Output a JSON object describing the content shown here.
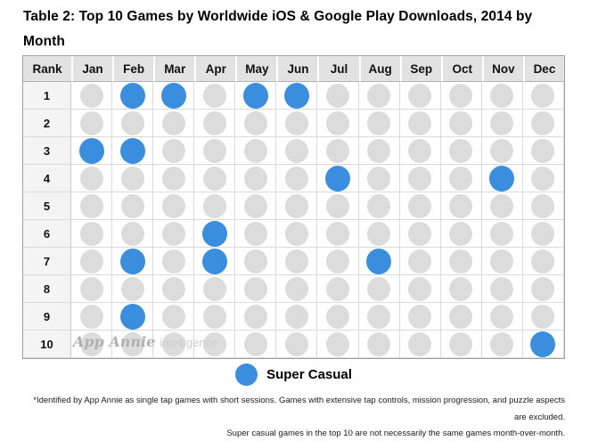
{
  "title": "Table 2: Top 10 Games by Worldwide iOS & Google Play Downloads, 2014 by Month",
  "legend": {
    "label": "Super Casual"
  },
  "watermark": {
    "brand": "App Annie",
    "suffix": "intelligence"
  },
  "footnotes": {
    "line1": "*Identified by App Annie as single tap games with short sessions. Games with extensive tap controls, mission progression, and puzzle aspects are excluded.",
    "line2": "Super casual games in the top 10 are not necessarily the same games month-over-month."
  },
  "colors": {
    "super_casual_blue": "#3a8edd",
    "other_game_gray": "#dcdcdc",
    "header_bg": "#e2e2e2",
    "rank_col_bg": "#f4f4f4"
  },
  "chart_data": {
    "type": "heatmap",
    "title": "Top 10 Games by Worldwide iOS & Google Play Downloads, 2014 by Month",
    "corner_header": "Rank",
    "x_categories": [
      "Jan",
      "Feb",
      "Mar",
      "Apr",
      "May",
      "Jun",
      "Jul",
      "Aug",
      "Sep",
      "Oct",
      "Nov",
      "Dec"
    ],
    "y_categories": [
      "1",
      "2",
      "3",
      "4",
      "5",
      "6",
      "7",
      "8",
      "9",
      "10"
    ],
    "legend": [
      {
        "label": "Super Casual",
        "color": "#3a8edd"
      }
    ],
    "cell_meaning": {
      "1": "Super Casual game at this rank",
      "0": "non-super-casual game at this rank"
    },
    "matrix": [
      [
        0,
        1,
        1,
        0,
        1,
        1,
        0,
        0,
        0,
        0,
        0,
        0
      ],
      [
        0,
        0,
        0,
        0,
        0,
        0,
        0,
        0,
        0,
        0,
        0,
        0
      ],
      [
        1,
        1,
        0,
        0,
        0,
        0,
        0,
        0,
        0,
        0,
        0,
        0
      ],
      [
        0,
        0,
        0,
        0,
        0,
        0,
        1,
        0,
        0,
        0,
        1,
        0
      ],
      [
        0,
        0,
        0,
        0,
        0,
        0,
        0,
        0,
        0,
        0,
        0,
        0
      ],
      [
        0,
        0,
        0,
        1,
        0,
        0,
        0,
        0,
        0,
        0,
        0,
        0
      ],
      [
        0,
        1,
        0,
        1,
        0,
        0,
        0,
        1,
        0,
        0,
        0,
        0
      ],
      [
        0,
        0,
        0,
        0,
        0,
        0,
        0,
        0,
        0,
        0,
        0,
        0
      ],
      [
        0,
        1,
        0,
        0,
        0,
        0,
        0,
        0,
        0,
        0,
        0,
        0
      ],
      [
        0,
        0,
        0,
        0,
        0,
        0,
        0,
        0,
        0,
        0,
        0,
        1
      ]
    ]
  }
}
